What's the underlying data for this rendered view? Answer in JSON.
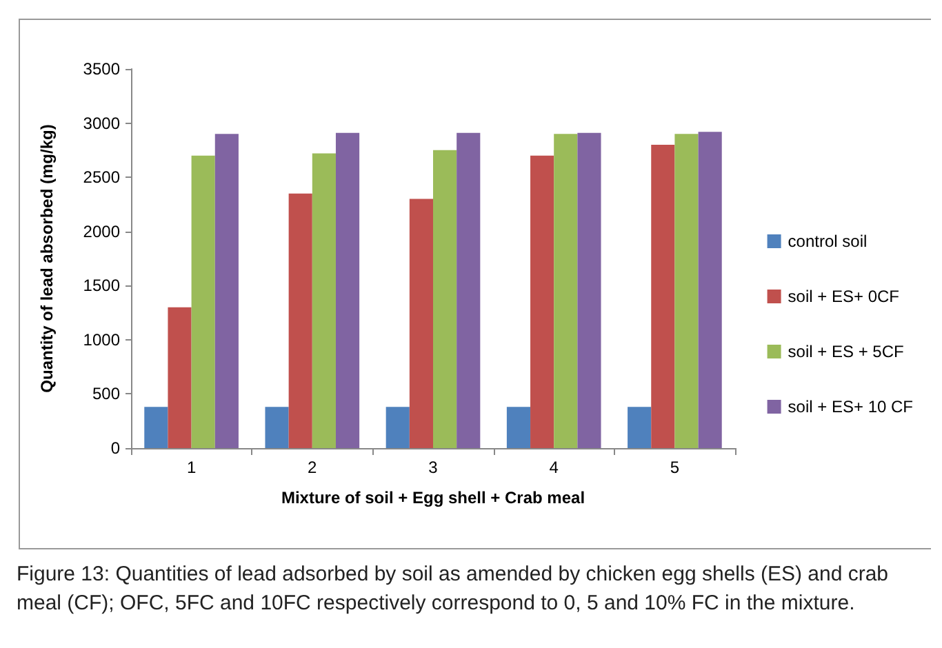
{
  "chart_data": {
    "type": "bar",
    "xlabel": "Mixture of soil + Egg shell + Crab meal",
    "ylabel": "Quantity of lead absorbed (mg/kg)",
    "categories": [
      "1",
      "2",
      "3",
      "4",
      "5"
    ],
    "series": [
      {
        "name": "control soil",
        "color": "#4f81bd",
        "values": [
          380,
          380,
          380,
          380,
          380
        ]
      },
      {
        "name": "soil + ES+ 0CF",
        "color": "#c0504d",
        "values": [
          1300,
          2350,
          2300,
          2700,
          2800
        ]
      },
      {
        "name": "soil + ES + 5CF",
        "color": "#9bbb59",
        "values": [
          2700,
          2720,
          2750,
          2900,
          2900
        ]
      },
      {
        "name": "soil + ES+ 10 CF",
        "color": "#8064a2",
        "values": [
          2900,
          2910,
          2910,
          2910,
          2920
        ]
      }
    ],
    "ylim": [
      0,
      3500
    ],
    "yticks": [
      0,
      500,
      1000,
      1500,
      2000,
      2500,
      3000,
      3500
    ],
    "grid": false,
    "legend": "right",
    "annotations": [
      "Figure 13: Quantities of lead adsorbed by soil as amended by chicken egg shells (ES) and crab meal (CF); OFC, 5FC and 10FC respectively correspond to 0, 5 and 10% FC in the mixture."
    ]
  }
}
